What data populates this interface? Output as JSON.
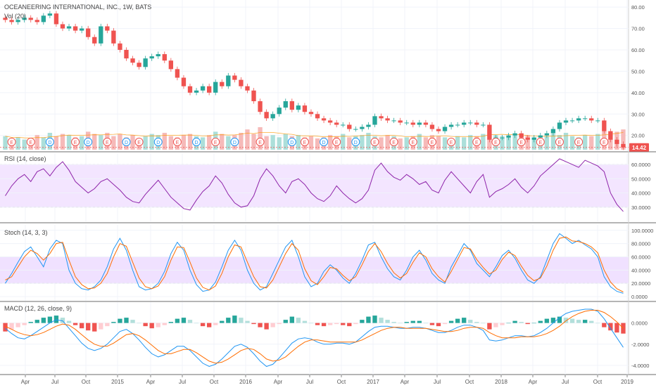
{
  "chart_data": [
    {
      "type": "candlestick",
      "pane": "price",
      "title": "OCEANEERING INTERNATIONAL, INC., 1W, BATS",
      "indicator_label": "Vol (20)",
      "ylim": [
        14,
        82
      ],
      "yticks": [
        "80.00",
        "70.00",
        "60.00",
        "50.00",
        "40.00",
        "30.00",
        "20.00"
      ],
      "last_price": "14.42",
      "close_series": [
        74,
        73,
        74,
        75,
        74,
        73,
        76,
        77,
        72,
        70,
        71,
        69,
        70,
        66,
        63,
        71,
        69,
        63,
        60,
        56,
        54,
        52,
        56,
        57,
        58,
        55,
        51,
        47,
        43,
        40,
        41,
        43,
        40,
        45,
        43,
        48,
        46,
        43,
        41,
        36,
        31,
        28,
        30,
        33,
        36,
        32,
        34,
        31,
        30,
        28,
        27,
        26,
        25,
        25,
        23,
        23,
        24,
        25,
        29,
        28,
        27,
        27,
        26,
        26,
        25,
        26,
        25,
        23,
        22,
        24,
        25,
        25,
        26,
        26,
        25,
        25,
        18,
        19,
        19,
        20,
        21,
        19,
        18,
        19,
        20,
        21,
        23,
        26,
        27,
        27,
        28,
        28,
        27,
        27,
        22,
        18,
        16,
        14.4
      ],
      "volume_series": [
        12,
        10,
        11,
        9,
        10,
        13,
        11,
        15,
        12,
        14,
        13,
        11,
        12,
        16,
        14,
        13,
        15,
        12,
        14,
        11,
        13,
        10,
        12,
        14,
        13,
        15,
        12,
        11,
        13,
        14,
        12,
        11,
        13,
        16,
        14,
        12,
        13,
        15,
        18,
        14,
        20,
        12,
        13,
        11,
        14,
        12,
        13,
        11,
        12,
        10,
        11,
        13,
        12,
        14,
        11,
        12,
        13,
        15,
        12,
        11,
        13,
        12,
        10,
        11,
        12,
        14,
        11,
        13,
        12,
        11,
        10,
        12,
        11,
        13,
        12,
        14,
        18,
        13,
        12,
        11,
        14,
        12,
        13,
        11,
        10,
        12,
        14,
        13,
        15,
        12,
        11,
        13,
        12,
        14,
        17,
        15,
        16,
        18
      ],
      "earnings_markers": "E",
      "dividend_markers": "D"
    },
    {
      "type": "line",
      "pane": "rsi",
      "title": "RSI (14, close)",
      "ylim": [
        22,
        66
      ],
      "yticks": [
        "60.0000",
        "50.0000",
        "40.0000",
        "30.0000"
      ],
      "bands": [
        30,
        60
      ],
      "values": [
        38,
        45,
        50,
        53,
        48,
        55,
        57,
        52,
        58,
        62,
        56,
        48,
        44,
        40,
        43,
        48,
        50,
        46,
        42,
        37,
        34,
        33,
        39,
        44,
        49,
        43,
        37,
        33,
        29,
        28,
        35,
        41,
        45,
        52,
        47,
        39,
        33,
        30,
        31,
        38,
        50,
        57,
        52,
        45,
        40,
        48,
        50,
        46,
        40,
        36,
        34,
        38,
        45,
        40,
        36,
        33,
        36,
        42,
        56,
        61,
        55,
        51,
        49,
        53,
        50,
        46,
        48,
        42,
        40,
        49,
        55,
        50,
        45,
        40,
        48,
        53,
        37,
        41,
        43,
        46,
        50,
        44,
        40,
        45,
        52,
        56,
        60,
        64,
        62,
        60,
        58,
        63,
        61,
        59,
        55,
        40,
        32,
        27
      ]
    },
    {
      "type": "line",
      "pane": "stoch",
      "title": "Stoch (14, 3, 3)",
      "ylim": [
        -2,
        104
      ],
      "yticks": [
        "100.0000",
        "80.0000",
        "60.0000",
        "40.0000",
        "20.0000",
        "0.0000"
      ],
      "bands": [
        20,
        60
      ],
      "series": [
        {
          "values": [
            20,
            35,
            52,
            68,
            75,
            60,
            45,
            72,
            85,
            80,
            40,
            20,
            12,
            10,
            15,
            25,
            45,
            72,
            88,
            70,
            40,
            15,
            10,
            12,
            20,
            38,
            65,
            82,
            70,
            40,
            18,
            8,
            10,
            22,
            45,
            70,
            85,
            70,
            40,
            20,
            10,
            15,
            35,
            55,
            75,
            85,
            60,
            30,
            15,
            20,
            38,
            48,
            40,
            28,
            20,
            35,
            55,
            78,
            82,
            60,
            42,
            30,
            25,
            40,
            60,
            70,
            55,
            35,
            25,
            20,
            45,
            62,
            80,
            70,
            50,
            40,
            30,
            45,
            62,
            70,
            58,
            40,
            25,
            20,
            30,
            55,
            80,
            95,
            88,
            80,
            85,
            78,
            72,
            60,
            30,
            15,
            8,
            5
          ]
        },
        {
          "values": [
            25,
            30,
            45,
            60,
            70,
            65,
            55,
            65,
            80,
            82,
            55,
            30,
            18,
            12,
            13,
            20,
            35,
            60,
            80,
            76,
            52,
            28,
            15,
            12,
            16,
            30,
            55,
            75,
            74,
            52,
            28,
            14,
            10,
            16,
            35,
            60,
            78,
            75,
            52,
            30,
            15,
            13,
            25,
            45,
            65,
            80,
            70,
            42,
            24,
            18,
            30,
            44,
            42,
            32,
            24,
            30,
            48,
            68,
            80,
            68,
            50,
            36,
            28,
            35,
            52,
            66,
            60,
            42,
            30,
            22,
            38,
            56,
            74,
            72,
            56,
            44,
            34,
            40,
            56,
            67,
            62,
            46,
            32,
            24,
            28,
            46,
            70,
            88,
            90,
            84,
            83,
            80,
            75,
            66,
            40,
            22,
            12,
            7
          ]
        }
      ]
    },
    {
      "type": "bar+line",
      "pane": "macd",
      "title": "MACD (12, 26, close, 9)",
      "ylim": [
        -4.6,
        1.7
      ],
      "yticks": [
        "0.0000",
        "-2.0000",
        "-4.0000"
      ],
      "histogram": [
        -0.8,
        -0.6,
        -0.4,
        -0.2,
        0.1,
        0.3,
        0.5,
        0.6,
        0.7,
        0.5,
        0.2,
        -0.2,
        -0.5,
        -0.7,
        -0.8,
        -0.6,
        -0.3,
        0.1,
        0.4,
        0.5,
        0.3,
        0.0,
        -0.3,
        -0.5,
        -0.4,
        -0.2,
        0.1,
        0.4,
        0.5,
        0.3,
        0.0,
        -0.3,
        -0.4,
        -0.2,
        0.2,
        0.5,
        0.7,
        0.5,
        0.2,
        -0.1,
        -0.4,
        -0.6,
        -0.4,
        -0.1,
        0.3,
        0.6,
        0.5,
        0.2,
        0.0,
        -0.2,
        -0.3,
        -0.2,
        -0.1,
        -0.2,
        -0.3,
        -0.1,
        0.3,
        0.6,
        0.7,
        0.5,
        0.3,
        0.1,
        0.0,
        0.1,
        0.2,
        0.2,
        0.0,
        -0.2,
        -0.3,
        -0.1,
        0.2,
        0.4,
        0.5,
        0.3,
        0.1,
        0.0,
        -0.6,
        -0.4,
        -0.2,
        0.0,
        0.2,
        0.1,
        -0.1,
        0.0,
        0.2,
        0.4,
        0.5,
        0.6,
        0.5,
        0.4,
        0.3,
        0.3,
        0.2,
        0.0,
        -0.4,
        -0.7,
        -0.9,
        -1.0
      ],
      "series": [
        {
          "name": "MACD",
          "values": [
            -0.5,
            -1.0,
            -1.4,
            -1.5,
            -1.2,
            -0.8,
            -0.4,
            0.0,
            0.3,
            0.2,
            -0.5,
            -1.2,
            -1.9,
            -2.4,
            -2.6,
            -2.4,
            -2.0,
            -1.4,
            -0.8,
            -0.6,
            -1.0,
            -1.6,
            -2.3,
            -2.9,
            -3.2,
            -3.0,
            -2.6,
            -2.2,
            -2.2,
            -2.6,
            -3.2,
            -3.8,
            -4.1,
            -3.9,
            -3.4,
            -2.8,
            -2.2,
            -2.0,
            -2.3,
            -2.9,
            -3.6,
            -4.1,
            -3.9,
            -3.3,
            -2.6,
            -1.9,
            -1.5,
            -1.4,
            -1.5,
            -1.8,
            -2.0,
            -2.0,
            -1.9,
            -1.9,
            -2.0,
            -1.8,
            -1.3,
            -0.8,
            -0.4,
            -0.3,
            -0.3,
            -0.4,
            -0.5,
            -0.5,
            -0.4,
            -0.4,
            -0.5,
            -0.7,
            -0.9,
            -0.9,
            -0.7,
            -0.4,
            -0.2,
            -0.2,
            -0.4,
            -0.7,
            -1.6,
            -1.7,
            -1.6,
            -1.4,
            -1.2,
            -1.2,
            -1.3,
            -1.2,
            -0.9,
            -0.5,
            0.0,
            0.5,
            0.9,
            1.1,
            1.2,
            1.3,
            1.3,
            1.1,
            0.4,
            -0.5,
            -1.4,
            -2.3
          ]
        },
        {
          "name": "Signal",
          "values": [
            -0.3,
            -0.6,
            -0.9,
            -1.1,
            -1.2,
            -1.1,
            -0.9,
            -0.6,
            -0.3,
            -0.1,
            -0.2,
            -0.6,
            -1.1,
            -1.6,
            -2.0,
            -2.2,
            -2.2,
            -1.9,
            -1.5,
            -1.1,
            -1.0,
            -1.2,
            -1.6,
            -2.1,
            -2.6,
            -2.9,
            -2.9,
            -2.7,
            -2.5,
            -2.5,
            -2.8,
            -3.2,
            -3.6,
            -3.8,
            -3.7,
            -3.4,
            -3.0,
            -2.6,
            -2.4,
            -2.5,
            -2.9,
            -3.4,
            -3.6,
            -3.5,
            -3.2,
            -2.7,
            -2.2,
            -1.8,
            -1.6,
            -1.6,
            -1.7,
            -1.8,
            -1.8,
            -1.8,
            -1.8,
            -1.8,
            -1.6,
            -1.3,
            -1.0,
            -0.7,
            -0.5,
            -0.4,
            -0.4,
            -0.5,
            -0.5,
            -0.5,
            -0.5,
            -0.6,
            -0.7,
            -0.8,
            -0.8,
            -0.7,
            -0.5,
            -0.4,
            -0.4,
            -0.5,
            -0.9,
            -1.2,
            -1.4,
            -1.4,
            -1.4,
            -1.3,
            -1.3,
            -1.3,
            -1.2,
            -1.0,
            -0.7,
            -0.3,
            0.2,
            0.6,
            0.9,
            1.1,
            1.2,
            1.2,
            1.0,
            0.6,
            0.1,
            -0.5
          ]
        }
      ]
    }
  ],
  "x_axis": {
    "ticks": [
      "Apr",
      "Jul",
      "Oct",
      "2015",
      "Apr",
      "Jul",
      "Oct",
      "2016",
      "Apr",
      "Jul",
      "Oct",
      "2017",
      "Apr",
      "Jul",
      "Oct",
      "2018",
      "Apr",
      "Jul",
      "Oct",
      "2019"
    ]
  }
}
